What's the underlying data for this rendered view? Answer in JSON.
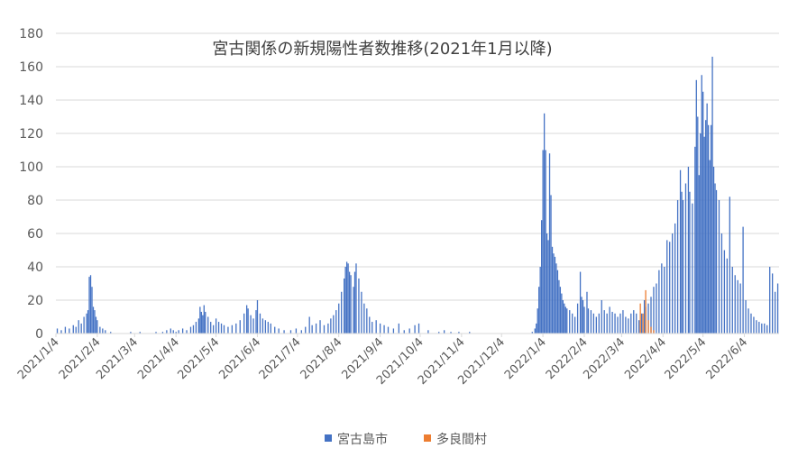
{
  "chart_data": {
    "type": "bar",
    "title": "宮古関係の新規陽性者数推移(2021年1月以降)",
    "xlabel": "",
    "ylabel": "",
    "ylim": [
      0,
      180
    ],
    "yticks": [
      0,
      20,
      40,
      60,
      80,
      100,
      120,
      140,
      160,
      180
    ],
    "grid": true,
    "legend_position": "bottom",
    "x_start": "2021/1/4",
    "x_end": "2022/6/30",
    "x_tick_labels": [
      "2021/1/4",
      "2021/2/4",
      "2021/3/4",
      "2021/4/4",
      "2021/5/4",
      "2021/6/4",
      "2021/7/4",
      "2021/8/4",
      "2021/9/4",
      "2021/10/4",
      "2021/11/4",
      "2021/12/4",
      "2022/1/4",
      "2022/2/4",
      "2022/3/4",
      "2022/4/4",
      "2022/5/4",
      "2022/6/4"
    ],
    "series": [
      {
        "name": "宮古島市",
        "color": "#4472c4",
        "points": [
          [
            "2021/1/5",
            3
          ],
          [
            "2021/1/8",
            2
          ],
          [
            "2021/1/11",
            4
          ],
          [
            "2021/1/14",
            3
          ],
          [
            "2021/1/17",
            5
          ],
          [
            "2021/1/19",
            4
          ],
          [
            "2021/1/21",
            8
          ],
          [
            "2021/1/23",
            6
          ],
          [
            "2021/1/25",
            10
          ],
          [
            "2021/1/27",
            12
          ],
          [
            "2021/1/28",
            14
          ],
          [
            "2021/1/29",
            34
          ],
          [
            "2021/1/30",
            35
          ],
          [
            "2021/1/31",
            28
          ],
          [
            "2021/2/1",
            16
          ],
          [
            "2021/2/2",
            14
          ],
          [
            "2021/2/3",
            10
          ],
          [
            "2021/2/4",
            8
          ],
          [
            "2021/2/6",
            4
          ],
          [
            "2021/2/8",
            3
          ],
          [
            "2021/2/10",
            2
          ],
          [
            "2021/2/14",
            1
          ],
          [
            "2021/3/1",
            1
          ],
          [
            "2021/3/8",
            1
          ],
          [
            "2021/3/20",
            1
          ],
          [
            "2021/3/25",
            1
          ],
          [
            "2021/3/28",
            2
          ],
          [
            "2021/3/31",
            3
          ],
          [
            "2021/4/2",
            2
          ],
          [
            "2021/4/4",
            1
          ],
          [
            "2021/4/6",
            2
          ],
          [
            "2021/4/9",
            3
          ],
          [
            "2021/4/12",
            2
          ],
          [
            "2021/4/15",
            4
          ],
          [
            "2021/4/17",
            5
          ],
          [
            "2021/4/19",
            7
          ],
          [
            "2021/4/21",
            9
          ],
          [
            "2021/4/22",
            16
          ],
          [
            "2021/4/23",
            13
          ],
          [
            "2021/4/24",
            11
          ],
          [
            "2021/4/25",
            17
          ],
          [
            "2021/4/26",
            13
          ],
          [
            "2021/4/28",
            10
          ],
          [
            "2021/4/30",
            7
          ],
          [
            "2021/5/2",
            5
          ],
          [
            "2021/5/4",
            9
          ],
          [
            "2021/5/6",
            7
          ],
          [
            "2021/5/8",
            6
          ],
          [
            "2021/5/10",
            5
          ],
          [
            "2021/5/13",
            4
          ],
          [
            "2021/5/16",
            5
          ],
          [
            "2021/5/19",
            6
          ],
          [
            "2021/5/22",
            8
          ],
          [
            "2021/5/25",
            12
          ],
          [
            "2021/5/27",
            17
          ],
          [
            "2021/5/28",
            15
          ],
          [
            "2021/5/30",
            11
          ],
          [
            "2021/6/1",
            9
          ],
          [
            "2021/6/3",
            14
          ],
          [
            "2021/6/4",
            20
          ],
          [
            "2021/6/6",
            12
          ],
          [
            "2021/6/8",
            9
          ],
          [
            "2021/6/10",
            8
          ],
          [
            "2021/6/12",
            7
          ],
          [
            "2021/6/14",
            6
          ],
          [
            "2021/6/17",
            4
          ],
          [
            "2021/6/20",
            3
          ],
          [
            "2021/6/24",
            2
          ],
          [
            "2021/6/29",
            2
          ],
          [
            "2021/7/3",
            3
          ],
          [
            "2021/7/7",
            2
          ],
          [
            "2021/7/10",
            4
          ],
          [
            "2021/7/13",
            10
          ],
          [
            "2021/7/15",
            5
          ],
          [
            "2021/7/18",
            6
          ],
          [
            "2021/7/21",
            8
          ],
          [
            "2021/7/24",
            5
          ],
          [
            "2021/7/27",
            6
          ],
          [
            "2021/7/29",
            9
          ],
          [
            "2021/7/31",
            11
          ],
          [
            "2021/8/2",
            14
          ],
          [
            "2021/8/4",
            18
          ],
          [
            "2021/8/6",
            25
          ],
          [
            "2021/8/8",
            33
          ],
          [
            "2021/8/9",
            40
          ],
          [
            "2021/8/10",
            43
          ],
          [
            "2021/8/11",
            42
          ],
          [
            "2021/8/12",
            37
          ],
          [
            "2021/8/13",
            35
          ],
          [
            "2021/8/15",
            28
          ],
          [
            "2021/8/16",
            37
          ],
          [
            "2021/8/17",
            42
          ],
          [
            "2021/8/19",
            33
          ],
          [
            "2021/8/21",
            25
          ],
          [
            "2021/8/23",
            18
          ],
          [
            "2021/8/25",
            15
          ],
          [
            "2021/8/27",
            10
          ],
          [
            "2021/8/29",
            7
          ],
          [
            "2021/9/1",
            8
          ],
          [
            "2021/9/4",
            6
          ],
          [
            "2021/9/7",
            5
          ],
          [
            "2021/9/10",
            4
          ],
          [
            "2021/9/14",
            3
          ],
          [
            "2021/9/18",
            6
          ],
          [
            "2021/9/22",
            2
          ],
          [
            "2021/9/26",
            3
          ],
          [
            "2021/9/30",
            5
          ],
          [
            "2021/10/3",
            6
          ],
          [
            "2021/10/10",
            2
          ],
          [
            "2021/10/18",
            1
          ],
          [
            "2021/10/22",
            2
          ],
          [
            "2021/10/27",
            1
          ],
          [
            "2021/11/2",
            1
          ],
          [
            "2021/11/10",
            1
          ],
          [
            "2021/12/27",
            1
          ],
          [
            "2021/12/29",
            3
          ],
          [
            "2021/12/30",
            6
          ],
          [
            "2021/12/31",
            15
          ],
          [
            "2022/1/1",
            28
          ],
          [
            "2022/1/2",
            40
          ],
          [
            "2022/1/3",
            68
          ],
          [
            "2022/1/4",
            110
          ],
          [
            "2022/1/5",
            132
          ],
          [
            "2022/1/6",
            110
          ],
          [
            "2022/1/7",
            60
          ],
          [
            "2022/1/8",
            56
          ],
          [
            "2022/1/9",
            108
          ],
          [
            "2022/1/10",
            83
          ],
          [
            "2022/1/11",
            52
          ],
          [
            "2022/1/12",
            48
          ],
          [
            "2022/1/13",
            46
          ],
          [
            "2022/1/14",
            42
          ],
          [
            "2022/1/15",
            38
          ],
          [
            "2022/1/16",
            32
          ],
          [
            "2022/1/17",
            28
          ],
          [
            "2022/1/18",
            24
          ],
          [
            "2022/1/19",
            20
          ],
          [
            "2022/1/20",
            18
          ],
          [
            "2022/1/21",
            16
          ],
          [
            "2022/1/22",
            15
          ],
          [
            "2022/1/24",
            14
          ],
          [
            "2022/1/26",
            12
          ],
          [
            "2022/1/28",
            10
          ],
          [
            "2022/1/30",
            18
          ],
          [
            "2022/2/1",
            37
          ],
          [
            "2022/2/2",
            22
          ],
          [
            "2022/2/3",
            20
          ],
          [
            "2022/2/4",
            16
          ],
          [
            "2022/2/6",
            25
          ],
          [
            "2022/2/7",
            15
          ],
          [
            "2022/2/9",
            14
          ],
          [
            "2022/2/11",
            12
          ],
          [
            "2022/2/13",
            10
          ],
          [
            "2022/2/15",
            12
          ],
          [
            "2022/2/17",
            20
          ],
          [
            "2022/2/19",
            14
          ],
          [
            "2022/2/21",
            12
          ],
          [
            "2022/2/23",
            16
          ],
          [
            "2022/2/25",
            13
          ],
          [
            "2022/2/27",
            12
          ],
          [
            "2022/3/1",
            10
          ],
          [
            "2022/3/3",
            12
          ],
          [
            "2022/3/5",
            14
          ],
          [
            "2022/3/7",
            10
          ],
          [
            "2022/3/9",
            9
          ],
          [
            "2022/3/11",
            12
          ],
          [
            "2022/3/13",
            14
          ],
          [
            "2022/3/15",
            12
          ],
          [
            "2022/3/17",
            8
          ],
          [
            "2022/3/19",
            12
          ],
          [
            "2022/3/21",
            20
          ],
          [
            "2022/3/22",
            16
          ],
          [
            "2022/3/24",
            18
          ],
          [
            "2022/3/26",
            22
          ],
          [
            "2022/3/28",
            28
          ],
          [
            "2022/3/30",
            30
          ],
          [
            "2022/4/1",
            38
          ],
          [
            "2022/4/3",
            42
          ],
          [
            "2022/4/5",
            40
          ],
          [
            "2022/4/7",
            56
          ],
          [
            "2022/4/9",
            55
          ],
          [
            "2022/4/11",
            60
          ],
          [
            "2022/4/13",
            66
          ],
          [
            "2022/4/15",
            80
          ],
          [
            "2022/4/17",
            98
          ],
          [
            "2022/4/18",
            85
          ],
          [
            "2022/4/19",
            80
          ],
          [
            "2022/4/21",
            90
          ],
          [
            "2022/4/23",
            100
          ],
          [
            "2022/4/24",
            85
          ],
          [
            "2022/4/26",
            78
          ],
          [
            "2022/4/28",
            112
          ],
          [
            "2022/4/29",
            152
          ],
          [
            "2022/4/30",
            130
          ],
          [
            "2022/5/1",
            95
          ],
          [
            "2022/5/2",
            120
          ],
          [
            "2022/5/3",
            155
          ],
          [
            "2022/5/4",
            145
          ],
          [
            "2022/5/5",
            118
          ],
          [
            "2022/5/6",
            128
          ],
          [
            "2022/5/7",
            138
          ],
          [
            "2022/5/8",
            125
          ],
          [
            "2022/5/9",
            104
          ],
          [
            "2022/5/10",
            125
          ],
          [
            "2022/5/11",
            166
          ],
          [
            "2022/5/12",
            100
          ],
          [
            "2022/5/13",
            90
          ],
          [
            "2022/5/14",
            86
          ],
          [
            "2022/5/16",
            80
          ],
          [
            "2022/5/18",
            60
          ],
          [
            "2022/5/20",
            50
          ],
          [
            "2022/5/22",
            45
          ],
          [
            "2022/5/24",
            82
          ],
          [
            "2022/5/26",
            40
          ],
          [
            "2022/5/28",
            35
          ],
          [
            "2022/5/30",
            32
          ],
          [
            "2022/6/1",
            30
          ],
          [
            "2022/6/3",
            64
          ],
          [
            "2022/6/5",
            20
          ],
          [
            "2022/6/7",
            15
          ],
          [
            "2022/6/9",
            12
          ],
          [
            "2022/6/11",
            10
          ],
          [
            "2022/6/13",
            8
          ],
          [
            "2022/6/15",
            7
          ],
          [
            "2022/6/17",
            6
          ],
          [
            "2022/6/19",
            6
          ],
          [
            "2022/6/21",
            5
          ],
          [
            "2022/6/23",
            40
          ],
          [
            "2022/6/25",
            36
          ],
          [
            "2022/6/27",
            25
          ],
          [
            "2022/6/29",
            30
          ]
        ]
      },
      {
        "name": "多良間村",
        "color": "#ed7d31",
        "points": [
          [
            "2022/3/18",
            18
          ],
          [
            "2022/3/20",
            12
          ],
          [
            "2022/3/22",
            26
          ],
          [
            "2022/3/24",
            8
          ],
          [
            "2022/3/26",
            4
          ],
          [
            "2022/3/28",
            2
          ]
        ]
      }
    ]
  }
}
